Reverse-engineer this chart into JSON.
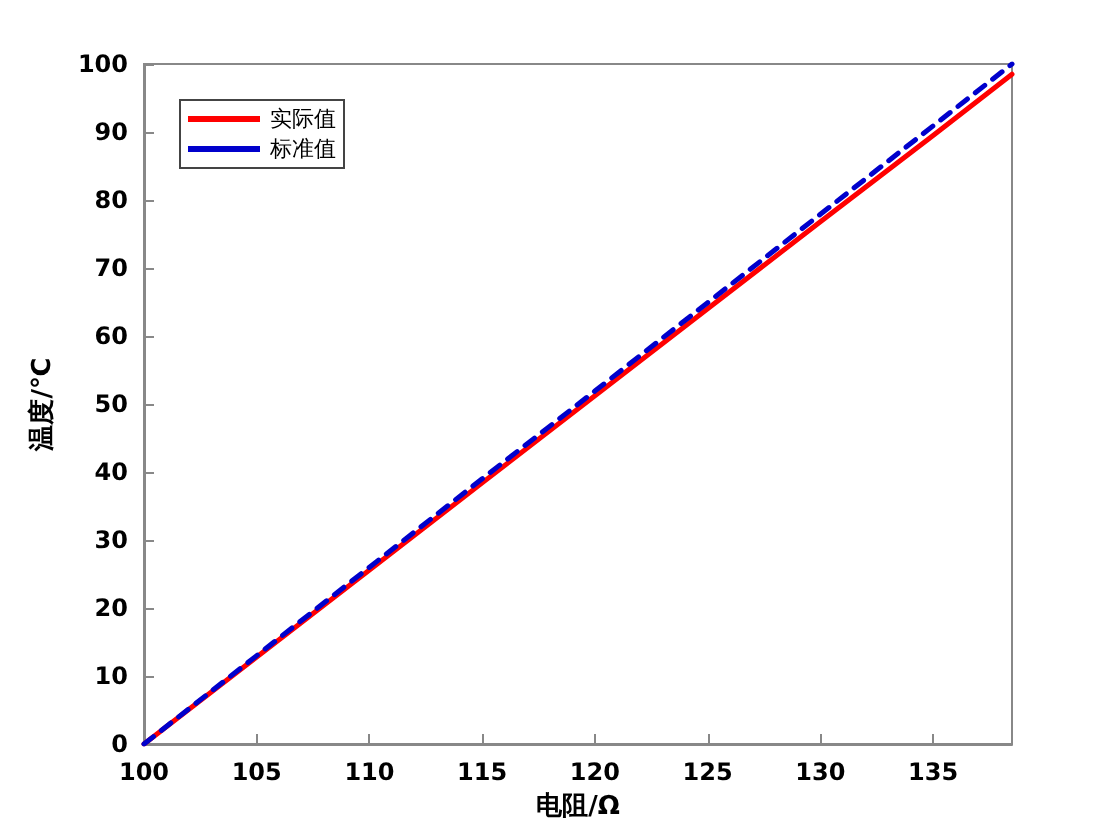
{
  "chart_data": {
    "type": "line",
    "xlabel": "电阻/Ω",
    "ylabel": "温度/℃",
    "xlim": [
      100,
      138.5
    ],
    "xticks": [
      100,
      105,
      110,
      115,
      120,
      125,
      130,
      135
    ],
    "ylim": [
      0,
      100
    ],
    "yticks": [
      0,
      10,
      20,
      30,
      40,
      50,
      60,
      70,
      80,
      90,
      100
    ],
    "grid": false,
    "legend": "top left",
    "marker": "none",
    "series": [
      {
        "name": "实际值",
        "color": "#ff0000",
        "line_style": "solid",
        "x": [
          100,
          105,
          110,
          115,
          120,
          125,
          130,
          135,
          138.5
        ],
        "values": [
          0,
          12.8,
          25.6,
          38.4,
          51.2,
          64,
          76.8,
          89.5,
          98.5
        ]
      },
      {
        "name": "标准值",
        "color": "#0000cc",
        "line_style": "dashed",
        "x": [
          100,
          105,
          110,
          115,
          120,
          125,
          130,
          135,
          138.5
        ],
        "values": [
          0,
          13,
          26,
          39,
          51.9,
          64.9,
          77.9,
          90.9,
          100
        ]
      }
    ]
  }
}
